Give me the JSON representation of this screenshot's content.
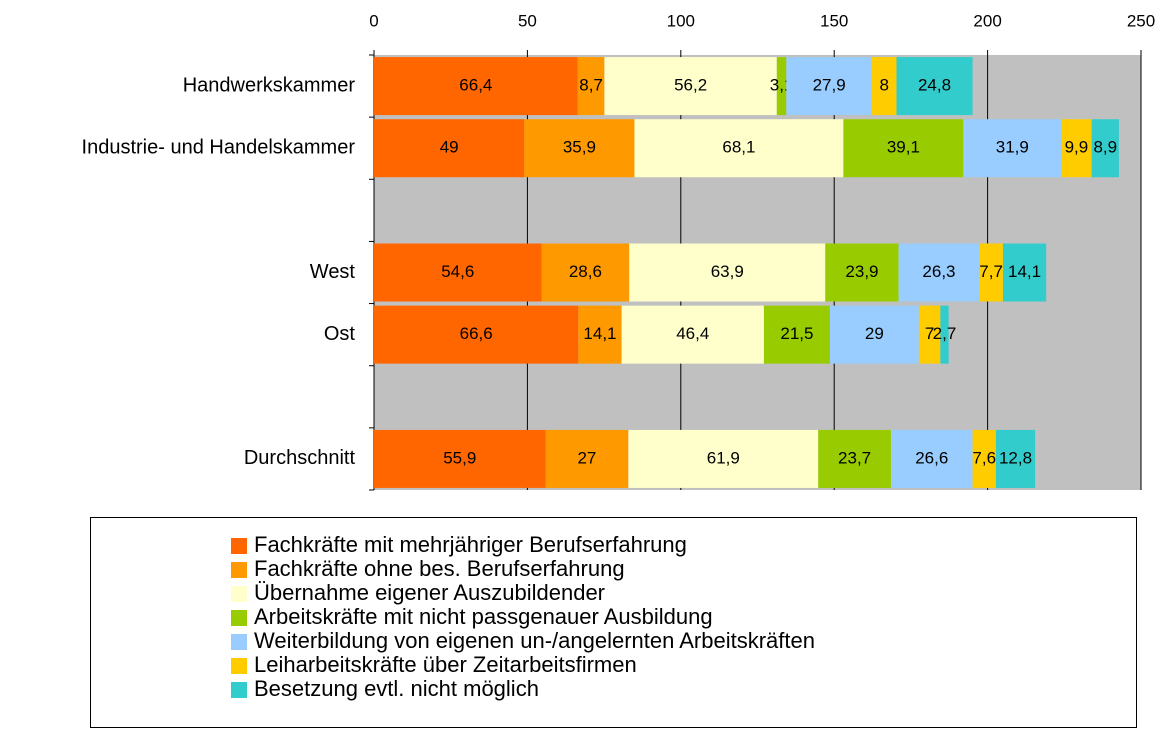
{
  "chart_data": {
    "type": "stacked_bar_horizontal",
    "categories": [
      "Handwerkskammer",
      "Industrie- und Handelskammer",
      null,
      "West",
      "Ost",
      null,
      "Durchschnitt"
    ],
    "xlim": [
      0,
      250
    ],
    "xticks": [
      0,
      50,
      100,
      150,
      200,
      250
    ],
    "grid": true,
    "legend": "bottom",
    "series": [
      {
        "name": "Fachkräfte mit mehrjähriger Berufserfahrung",
        "color": "#ff6600",
        "values": [
          66.4,
          49,
          null,
          54.6,
          66.6,
          null,
          55.9
        ],
        "value_labels": [
          "66,4",
          "49",
          null,
          "54,6",
          "66,6",
          null,
          "55,9"
        ]
      },
      {
        "name": "Fachkräfte ohne bes. Berufserfahrung",
        "color": "#ff9900",
        "values": [
          8.7,
          35.9,
          null,
          28.6,
          14.1,
          null,
          27
        ],
        "value_labels": [
          "8,7",
          "35,9",
          null,
          "28,6",
          "14,1",
          null,
          "27"
        ]
      },
      {
        "name": "Übernahme eigener Auszubildender",
        "color": "#ffffcc",
        "values": [
          56.2,
          68.1,
          null,
          63.9,
          46.4,
          null,
          61.9
        ],
        "value_labels": [
          "56,2",
          "68,1",
          null,
          "63,9",
          "46,4",
          null,
          "61,9"
        ]
      },
      {
        "name": "Arbeitskräfte mit nicht passgenauer Ausbildung",
        "color": "#99cc00",
        "values": [
          3.1,
          39.1,
          null,
          23.9,
          21.5,
          null,
          23.7
        ],
        "value_labels": [
          "3,1",
          "39,1",
          null,
          "23,9",
          "21,5",
          null,
          "23,7"
        ]
      },
      {
        "name": "Weiterbildung von eigenen un-/angelernten Arbeitskräften",
        "color": "#99ccff",
        "values": [
          27.9,
          31.9,
          null,
          26.3,
          29,
          null,
          26.6
        ],
        "value_labels": [
          "27,9",
          "31,9",
          null,
          "26,3",
          "29",
          null,
          "26,6"
        ]
      },
      {
        "name": "Leiharbeitskräfte über Zeitarbeitsfirmen",
        "color": "#ffcc00",
        "values": [
          8,
          9.9,
          null,
          7.7,
          7,
          null,
          7.6
        ],
        "value_labels": [
          "8",
          "9,9",
          null,
          "7,7",
          "7",
          null,
          "7,6"
        ]
      },
      {
        "name": "Besetzung evtl. nicht möglich",
        "color": "#33cccc",
        "values": [
          24.8,
          8.9,
          null,
          14.1,
          2.7,
          null,
          12.8
        ],
        "value_labels": [
          "24,8",
          "8,9",
          null,
          "14,1",
          "2,7",
          null,
          "12,8"
        ]
      }
    ]
  }
}
